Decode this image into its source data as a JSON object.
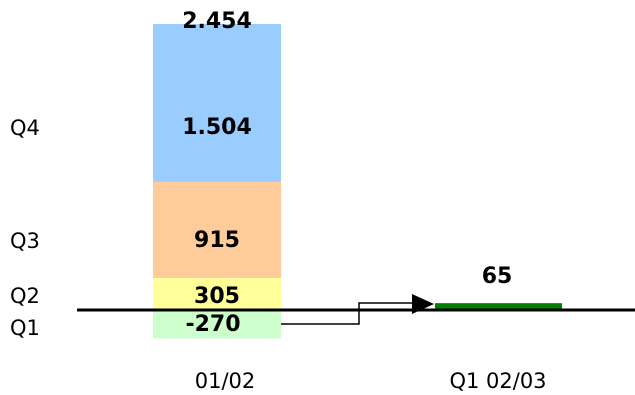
{
  "chart_data": {
    "type": "bar",
    "stacked": true,
    "categories": [
      "01/02",
      "Q1 02/03"
    ],
    "quarters": [
      "Q1",
      "Q2",
      "Q3",
      "Q4"
    ],
    "stack_segments": [
      {
        "name": "Q1",
        "value": -270,
        "label": "-270",
        "color": "#ccffcc"
      },
      {
        "name": "Q2",
        "value": 305,
        "label": "305",
        "color": "#ffff99"
      },
      {
        "name": "Q3",
        "value": 915,
        "label": "915",
        "color": "#ffcc99"
      },
      {
        "name": "Q4",
        "value": 1504,
        "label": "1.504",
        "color": "#99ccff"
      }
    ],
    "stack_total": {
      "value": 2454,
      "label": "2.454"
    },
    "second_bar": {
      "value": 65,
      "label": "65",
      "color": "#008000"
    },
    "ylim": [
      -270,
      2454
    ],
    "grid": false,
    "legend": "none"
  }
}
